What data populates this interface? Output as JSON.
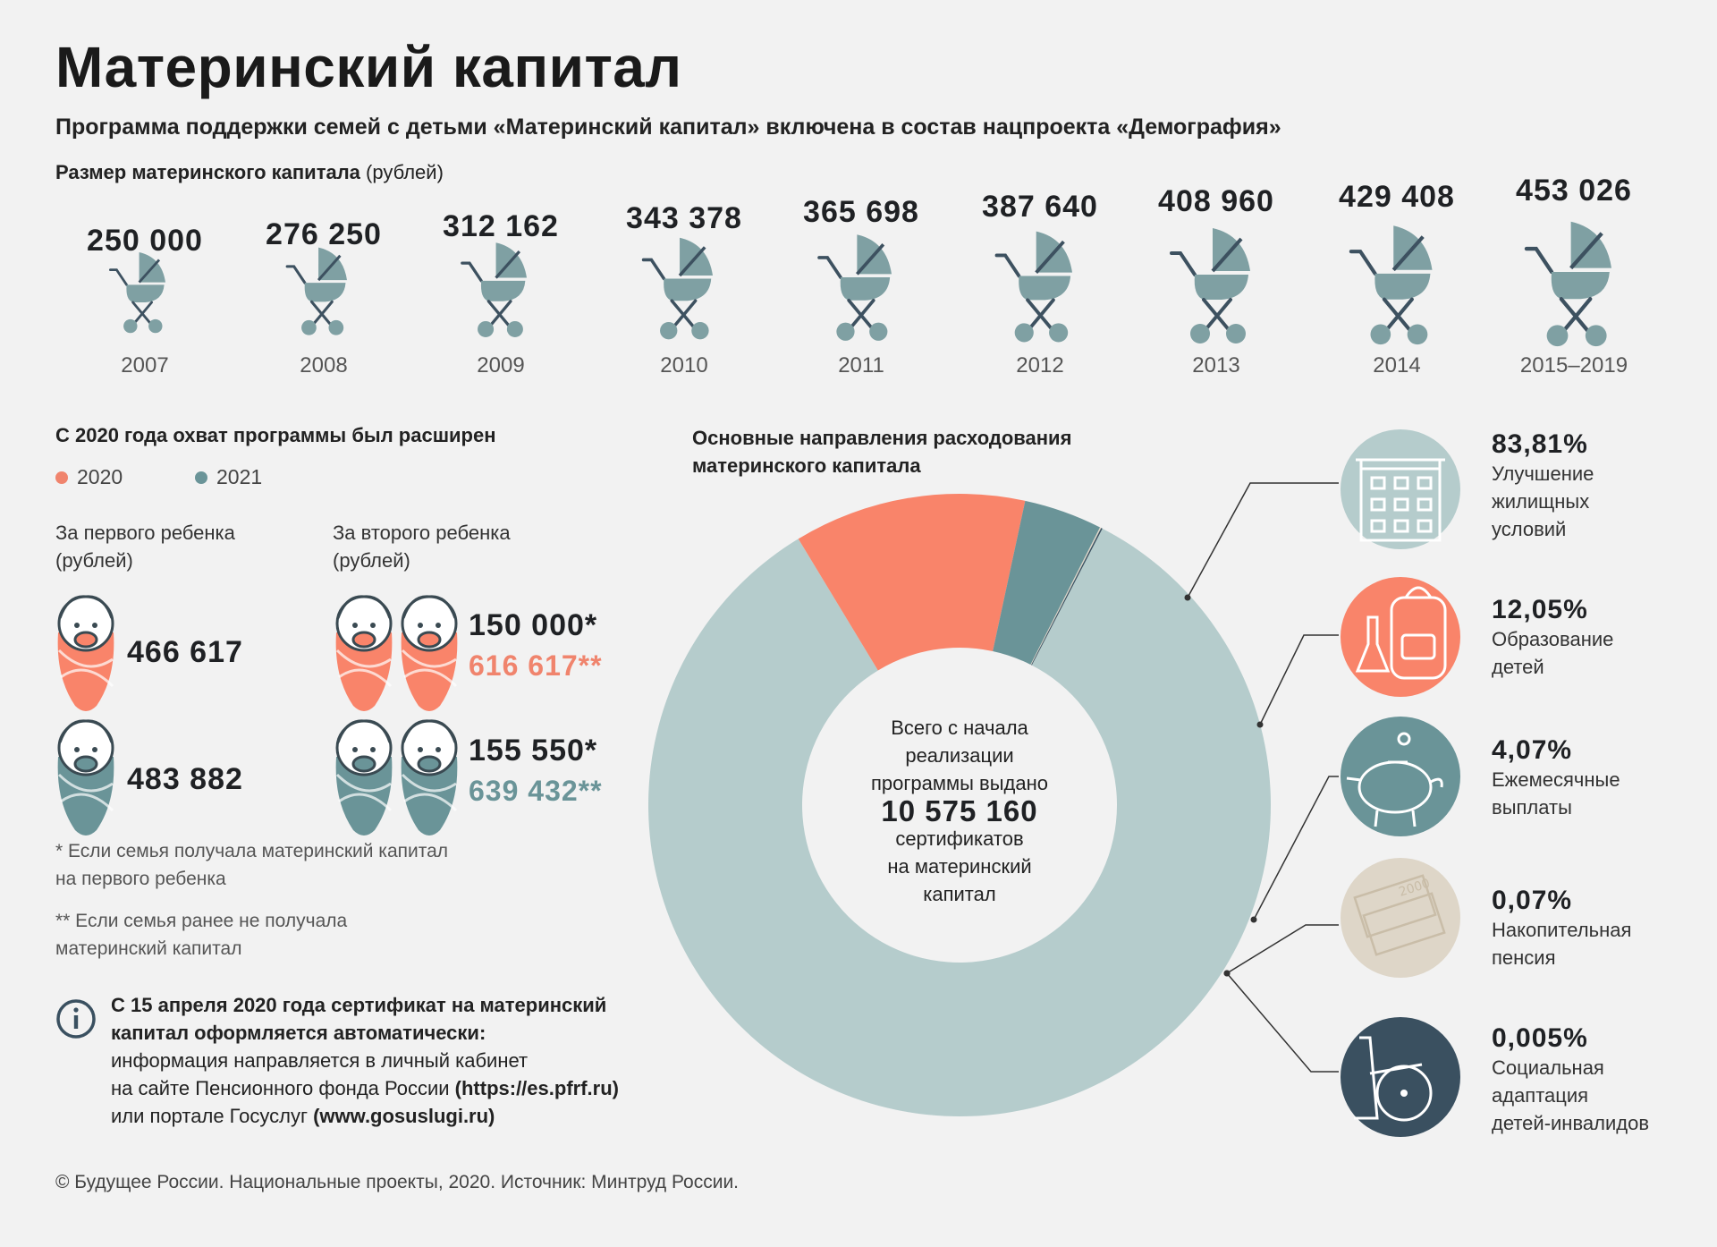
{
  "title": "Материнский капитал",
  "subtitle": "Программа поддержки семей с детьми «Материнский капитал» включена в состав нацпроекта «Демография»",
  "size_label": "Размер материнского капитала",
  "size_unit": "(рублей)",
  "capital_by_year": [
    {
      "value": "250 000",
      "year": "2007"
    },
    {
      "value": "276 250",
      "year": "2008"
    },
    {
      "value": "312 162",
      "year": "2009"
    },
    {
      "value": "343 378",
      "year": "2010"
    },
    {
      "value": "365 698",
      "year": "2011"
    },
    {
      "value": "387 640",
      "year": "2012"
    },
    {
      "value": "408 960",
      "year": "2013"
    },
    {
      "value": "429 408",
      "year": "2014"
    },
    {
      "value": "453 026",
      "year": "2015–2019"
    }
  ],
  "expansion": {
    "heading": "С 2020 года охват программы был расширен",
    "legend": [
      {
        "label": "2020",
        "color": "#f0846d"
      },
      {
        "label": "2021",
        "color": "#6a9498"
      }
    ],
    "first_child_label": "За первого ребенка",
    "first_child_unit": "(рублей)",
    "second_child_label": "За второго ребенка",
    "second_child_unit": "(рублей)",
    "first_2020": "466 617",
    "first_2021": "483 882",
    "second_2020_a": "150 000*",
    "second_2020_b": "616 617**",
    "second_2021_a": "155 550*",
    "second_2021_b": "639 432**",
    "note1": "* Если семья получала материнский капитал",
    "note1b": "на первого ребенка",
    "note2": "** Если семья ранее не получала",
    "note2b": "материнский капитал"
  },
  "info": {
    "line1": "С 15 апреля 2020 года сертификат на материнский",
    "line2": "капитал оформляется автоматически:",
    "line3": "информация направляется в личный кабинет",
    "line4a": "на сайте Пенсионного фонда России ",
    "line4b": "(https://es.pfrf.ru)",
    "line5a": "или портале Госуслуг ",
    "line5b": "(www.gosuslugi.ru)"
  },
  "donut_heading1": "Основные направления расходования",
  "donut_heading2": "материнского капитала",
  "center": {
    "l1": "Всего с начала",
    "l2": "реализации",
    "l3": "программы выдано",
    "number": "10 575 160",
    "l4": "сертификатов",
    "l5": "на материнский",
    "l6": "капитал"
  },
  "chart_data": {
    "type": "pie",
    "title": "Основные направления расходования материнского капитала",
    "series": [
      {
        "name": "Улучшение жилищных условий",
        "value": 83.81,
        "color": "#b5cccc",
        "pct": "83,81%",
        "lines": [
          "Улучшение",
          "жилищных",
          "условий"
        ],
        "icon": "building-icon",
        "icon_bg": "#b5cccc"
      },
      {
        "name": "Образование детей",
        "value": 12.05,
        "color": "#f9846a",
        "pct": "12,05%",
        "lines": [
          "Образование",
          "детей"
        ],
        "icon": "backpack-icon",
        "icon_bg": "#f9846a"
      },
      {
        "name": "Ежемесячные выплаты",
        "value": 4.07,
        "color": "#6a9498",
        "pct": "4,07%",
        "lines": [
          "Ежемесячные",
          "выплаты"
        ],
        "icon": "piggy-bank-icon",
        "icon_bg": "#6a9498"
      },
      {
        "name": "Накопительная пенсия",
        "value": 0.07,
        "color": "#ded6c8",
        "pct": "0,07%",
        "lines": [
          "Накопительная",
          "пенсия"
        ],
        "icon": "money-icon",
        "icon_bg": "#ded6c8"
      },
      {
        "name": "Социальная адаптация детей-инвалидов",
        "value": 0.005,
        "color": "#3a5060",
        "pct": "0,005%",
        "lines": [
          "Социальная",
          "адаптация",
          "детей-инвалидов"
        ],
        "icon": "wheelchair-icon",
        "icon_bg": "#3a5060"
      }
    ]
  },
  "footer": "© Будущее России. Национальные проекты, 2020. Источник: Минтруд России."
}
